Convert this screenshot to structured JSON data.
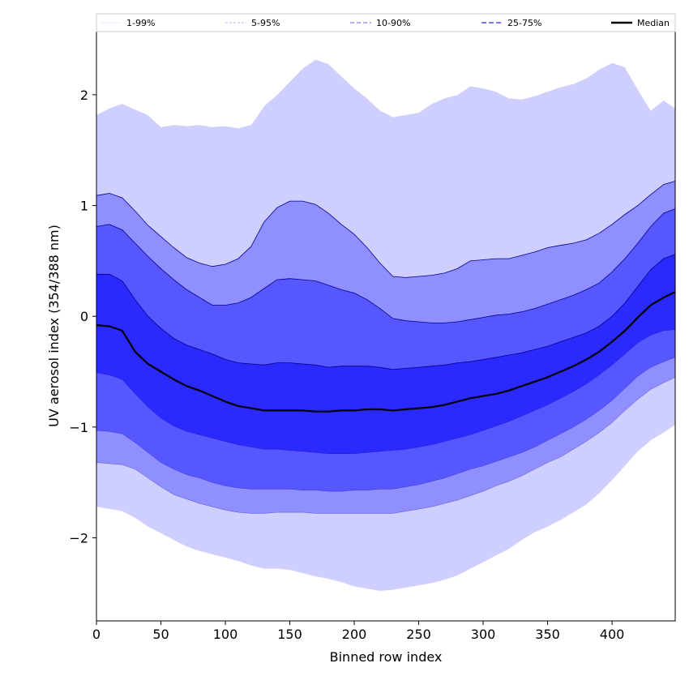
{
  "chart_data": {
    "type": "area",
    "xlabel": "Binned row index",
    "ylabel": "UV aerosol index (354/388 nm)",
    "xlim": [
      0,
      449
    ],
    "ylim": [
      -2.75,
      2.57
    ],
    "x_ticks": [
      0,
      50,
      100,
      150,
      200,
      250,
      300,
      350,
      400
    ],
    "y_ticks": [
      -2,
      -1,
      0,
      1,
      2
    ],
    "y_tick_labels": [
      "−2",
      "−1",
      "0",
      "1",
      "2"
    ],
    "legend_position": "top",
    "x": [
      0,
      10,
      20,
      30,
      40,
      50,
      60,
      70,
      80,
      90,
      100,
      110,
      120,
      130,
      140,
      150,
      160,
      170,
      180,
      190,
      200,
      210,
      220,
      230,
      240,
      250,
      260,
      270,
      280,
      290,
      300,
      310,
      320,
      330,
      340,
      350,
      360,
      370,
      380,
      390,
      400,
      410,
      420,
      430,
      440,
      449
    ],
    "bands": [
      {
        "name": "1-99%",
        "color": "#cfcfff",
        "edge_color": "#ffffff",
        "upper": [
          1.82,
          1.88,
          1.92,
          1.87,
          1.82,
          1.71,
          1.73,
          1.72,
          1.73,
          1.71,
          1.72,
          1.7,
          1.73,
          1.9,
          2.0,
          2.12,
          2.24,
          2.32,
          2.28,
          2.17,
          2.06,
          1.97,
          1.86,
          1.8,
          1.82,
          1.84,
          1.92,
          1.97,
          2.0,
          2.08,
          2.06,
          2.03,
          1.97,
          1.96,
          1.99,
          2.03,
          2.07,
          2.1,
          2.15,
          2.23,
          2.29,
          2.25,
          2.05,
          1.86,
          1.95,
          1.88
        ],
        "lower": [
          -1.72,
          -1.74,
          -1.76,
          -1.82,
          -1.9,
          -1.96,
          -2.02,
          -2.08,
          -2.12,
          -2.15,
          -2.18,
          -2.21,
          -2.25,
          -2.28,
          -2.28,
          -2.29,
          -2.32,
          -2.35,
          -2.37,
          -2.4,
          -2.44,
          -2.46,
          -2.48,
          -2.47,
          -2.45,
          -2.43,
          -2.41,
          -2.38,
          -2.34,
          -2.28,
          -2.22,
          -2.16,
          -2.1,
          -2.02,
          -1.95,
          -1.9,
          -1.84,
          -1.77,
          -1.7,
          -1.6,
          -1.48,
          -1.35,
          -1.22,
          -1.12,
          -1.05,
          -0.98
        ]
      },
      {
        "name": "5-95%",
        "color": "#8f8fff",
        "edge_color": "#00008b",
        "upper": [
          1.09,
          1.11,
          1.07,
          0.95,
          0.82,
          0.72,
          0.62,
          0.53,
          0.48,
          0.45,
          0.47,
          0.52,
          0.63,
          0.85,
          0.98,
          1.04,
          1.04,
          1.01,
          0.93,
          0.83,
          0.74,
          0.62,
          0.48,
          0.36,
          0.35,
          0.36,
          0.37,
          0.39,
          0.43,
          0.5,
          0.51,
          0.52,
          0.52,
          0.55,
          0.58,
          0.62,
          0.64,
          0.66,
          0.69,
          0.75,
          0.83,
          0.92,
          1.0,
          1.1,
          1.19,
          1.22
        ],
        "lower": [
          -1.32,
          -1.33,
          -1.34,
          -1.38,
          -1.46,
          -1.54,
          -1.61,
          -1.65,
          -1.69,
          -1.72,
          -1.75,
          -1.77,
          -1.78,
          -1.78,
          -1.77,
          -1.77,
          -1.77,
          -1.78,
          -1.78,
          -1.78,
          -1.78,
          -1.78,
          -1.78,
          -1.78,
          -1.76,
          -1.74,
          -1.72,
          -1.69,
          -1.66,
          -1.62,
          -1.58,
          -1.53,
          -1.49,
          -1.44,
          -1.38,
          -1.32,
          -1.27,
          -1.2,
          -1.13,
          -1.05,
          -0.96,
          -0.85,
          -0.75,
          -0.66,
          -0.6,
          -0.55
        ]
      },
      {
        "name": "10-90%",
        "color": "#5757ff",
        "edge_color": "#00008b",
        "upper": [
          0.81,
          0.83,
          0.78,
          0.66,
          0.54,
          0.43,
          0.33,
          0.24,
          0.17,
          0.1,
          0.1,
          0.12,
          0.17,
          0.25,
          0.33,
          0.34,
          0.33,
          0.32,
          0.28,
          0.24,
          0.21,
          0.15,
          0.07,
          -0.02,
          -0.04,
          -0.05,
          -0.06,
          -0.06,
          -0.05,
          -0.03,
          -0.01,
          0.01,
          0.02,
          0.04,
          0.07,
          0.11,
          0.15,
          0.19,
          0.24,
          0.3,
          0.4,
          0.52,
          0.66,
          0.81,
          0.93,
          0.97
        ],
        "lower": [
          -1.03,
          -1.04,
          -1.06,
          -1.14,
          -1.23,
          -1.32,
          -1.38,
          -1.43,
          -1.46,
          -1.5,
          -1.53,
          -1.55,
          -1.56,
          -1.56,
          -1.56,
          -1.56,
          -1.57,
          -1.57,
          -1.58,
          -1.58,
          -1.57,
          -1.57,
          -1.56,
          -1.56,
          -1.54,
          -1.52,
          -1.49,
          -1.46,
          -1.42,
          -1.38,
          -1.35,
          -1.31,
          -1.27,
          -1.23,
          -1.18,
          -1.12,
          -1.06,
          -1.0,
          -0.93,
          -0.85,
          -0.76,
          -0.65,
          -0.54,
          -0.46,
          -0.41,
          -0.37
        ]
      },
      {
        "name": "25-75%",
        "color": "#2a2aff",
        "edge_color": "#00008b",
        "upper": [
          0.38,
          0.38,
          0.32,
          0.15,
          0.0,
          -0.11,
          -0.2,
          -0.26,
          -0.3,
          -0.34,
          -0.39,
          -0.42,
          -0.43,
          -0.44,
          -0.42,
          -0.42,
          -0.43,
          -0.44,
          -0.46,
          -0.45,
          -0.45,
          -0.45,
          -0.46,
          -0.48,
          -0.47,
          -0.46,
          -0.45,
          -0.44,
          -0.42,
          -0.41,
          -0.39,
          -0.37,
          -0.35,
          -0.33,
          -0.3,
          -0.27,
          -0.23,
          -0.19,
          -0.15,
          -0.09,
          0.0,
          0.12,
          0.27,
          0.42,
          0.52,
          0.56
        ],
        "lower": [
          -0.51,
          -0.53,
          -0.57,
          -0.7,
          -0.82,
          -0.92,
          -0.99,
          -1.04,
          -1.07,
          -1.1,
          -1.13,
          -1.16,
          -1.18,
          -1.2,
          -1.2,
          -1.21,
          -1.22,
          -1.23,
          -1.24,
          -1.24,
          -1.24,
          -1.23,
          -1.22,
          -1.21,
          -1.2,
          -1.18,
          -1.16,
          -1.13,
          -1.1,
          -1.07,
          -1.03,
          -0.99,
          -0.95,
          -0.9,
          -0.85,
          -0.8,
          -0.74,
          -0.68,
          -0.61,
          -0.53,
          -0.44,
          -0.34,
          -0.24,
          -0.17,
          -0.13,
          -0.12
        ]
      }
    ],
    "median": {
      "name": "Median",
      "color": "#000000",
      "values": [
        -0.08,
        -0.09,
        -0.13,
        -0.32,
        -0.43,
        -0.5,
        -0.57,
        -0.63,
        -0.67,
        -0.72,
        -0.77,
        -0.81,
        -0.83,
        -0.85,
        -0.85,
        -0.85,
        -0.85,
        -0.86,
        -0.86,
        -0.85,
        -0.85,
        -0.84,
        -0.84,
        -0.85,
        -0.84,
        -0.83,
        -0.82,
        -0.8,
        -0.77,
        -0.74,
        -0.72,
        -0.7,
        -0.67,
        -0.63,
        -0.59,
        -0.55,
        -0.5,
        -0.45,
        -0.39,
        -0.32,
        -0.23,
        -0.13,
        -0.01,
        0.1,
        0.17,
        0.22
      ]
    },
    "legend": [
      {
        "label": "1-99%",
        "color": "#e8e8ff",
        "dash": "none",
        "width": 1
      },
      {
        "label": "5-95%",
        "color": "#b0b0ff",
        "dash": "3,2",
        "width": 1
      },
      {
        "label": "10-90%",
        "color": "#7f7fff",
        "dash": "5,3",
        "width": 1.2
      },
      {
        "label": "25-75%",
        "color": "#4a4aff",
        "dash": "6,3",
        "width": 1.5
      },
      {
        "label": "Median",
        "color": "#000000",
        "dash": "none",
        "width": 2.5
      }
    ]
  }
}
